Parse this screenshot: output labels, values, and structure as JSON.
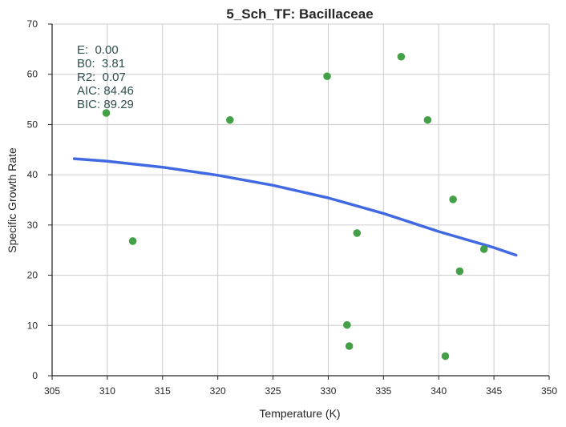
{
  "chart_data": {
    "type": "scatter",
    "title": "5_Sch_TF: Bacillaceae",
    "xlabel": "Temperature (K)",
    "ylabel": "Specific Growth Rate",
    "xlim": [
      305,
      350
    ],
    "ylim": [
      0,
      70
    ],
    "x_ticks": [
      305,
      310,
      315,
      320,
      325,
      330,
      335,
      340,
      345,
      350
    ],
    "y_ticks": [
      0,
      10,
      20,
      30,
      40,
      50,
      60,
      70
    ],
    "x_tick_labels": [
      "305",
      "310",
      "315",
      "320",
      "325",
      "330",
      "335",
      "340",
      "345",
      "350"
    ],
    "y_tick_labels": [
      "0",
      "10",
      "20",
      "30",
      "40",
      "50",
      "60",
      "70"
    ],
    "grid": true,
    "points": [
      {
        "x": 309.9,
        "y": 52.3
      },
      {
        "x": 312.3,
        "y": 26.8
      },
      {
        "x": 321.1,
        "y": 50.9
      },
      {
        "x": 329.9,
        "y": 59.6
      },
      {
        "x": 331.7,
        "y": 10.1
      },
      {
        "x": 331.9,
        "y": 5.9
      },
      {
        "x": 332.6,
        "y": 28.4
      },
      {
        "x": 336.6,
        "y": 63.5
      },
      {
        "x": 339.0,
        "y": 50.9
      },
      {
        "x": 340.6,
        "y": 3.9
      },
      {
        "x": 341.3,
        "y": 35.1
      },
      {
        "x": 341.9,
        "y": 20.8
      },
      {
        "x": 344.1,
        "y": 25.2
      }
    ],
    "fit_curve": {
      "x": [
        307,
        310,
        315,
        320,
        325,
        330,
        335,
        340,
        345,
        347
      ],
      "y": [
        43.2,
        42.7,
        41.5,
        39.9,
        37.9,
        35.4,
        32.3,
        28.7,
        25.5,
        24.0
      ]
    },
    "annotations": [
      "E:  0.00",
      "B0:  3.81",
      "R2:  0.07",
      "AIC: 84.46",
      "BIC: 89.29"
    ],
    "colors": {
      "points": "#43a047",
      "curve": "#4169e1",
      "grid": "#cccccc",
      "axis": "#262626",
      "annotation_text": "#2f4f4f"
    }
  }
}
